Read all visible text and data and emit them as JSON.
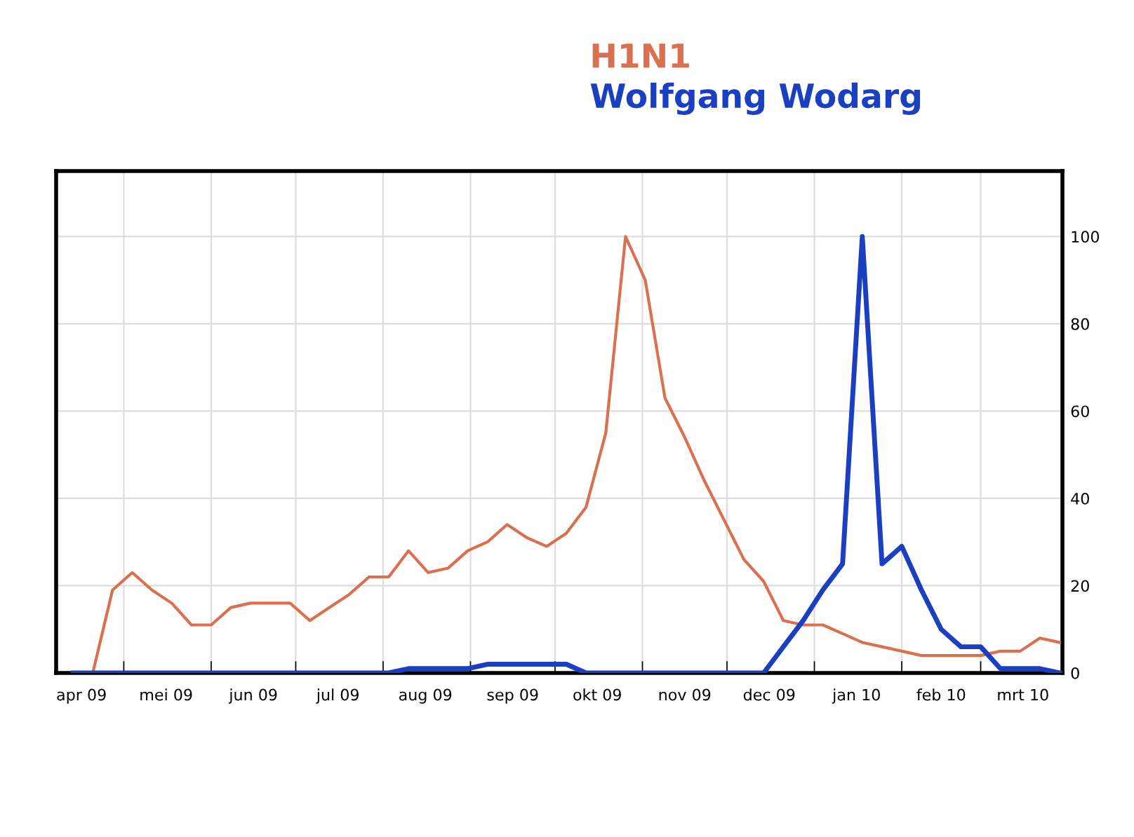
{
  "chart_data": {
    "type": "line",
    "x": [
      "2009-04-13",
      "2009-04-20",
      "2009-04-27",
      "2009-05-04",
      "2009-05-11",
      "2009-05-18",
      "2009-05-25",
      "2009-06-01",
      "2009-06-08",
      "2009-06-15",
      "2009-06-22",
      "2009-06-29",
      "2009-07-06",
      "2009-07-13",
      "2009-07-20",
      "2009-07-27",
      "2009-08-03",
      "2009-08-10",
      "2009-08-17",
      "2009-08-24",
      "2009-08-31",
      "2009-09-07",
      "2009-09-14",
      "2009-09-21",
      "2009-09-28",
      "2009-10-05",
      "2009-10-12",
      "2009-10-19",
      "2009-10-26",
      "2009-11-02",
      "2009-11-09",
      "2009-11-16",
      "2009-11-23",
      "2009-11-30",
      "2009-12-07",
      "2009-12-14",
      "2009-12-21",
      "2009-12-28",
      "2010-01-04",
      "2010-01-11",
      "2010-01-18",
      "2010-01-25",
      "2010-02-01",
      "2010-02-08",
      "2010-02-15",
      "2010-02-22",
      "2010-03-01",
      "2010-03-08",
      "2010-03-15",
      "2010-03-22",
      "2010-03-29"
    ],
    "series": [
      {
        "name": "H1N1",
        "color": "#d9704f",
        "values": [
          0,
          0,
          19,
          23,
          19,
          16,
          11,
          11,
          15,
          16,
          16,
          16,
          12,
          15,
          18,
          22,
          22,
          28,
          23,
          24,
          28,
          30,
          34,
          31,
          29,
          32,
          38,
          55,
          100,
          90,
          63,
          54,
          44,
          35,
          26,
          21,
          12,
          11,
          11,
          9,
          7,
          6,
          5,
          4,
          4,
          4,
          4,
          5,
          5,
          8,
          7
        ]
      },
      {
        "name": "Wolfgang Wodarg",
        "color": "#1a3fc0",
        "values": [
          0,
          0,
          0,
          0,
          0,
          0,
          0,
          0,
          0,
          0,
          0,
          0,
          0,
          0,
          0,
          0,
          0,
          1,
          1,
          1,
          1,
          2,
          2,
          2,
          2,
          2,
          0,
          0,
          0,
          0,
          0,
          0,
          0,
          0,
          0,
          0,
          6,
          12,
          19,
          25,
          100,
          25,
          29,
          19,
          10,
          6,
          6,
          1,
          1,
          1,
          0
        ]
      }
    ],
    "xlim": [
      "2009-04-07",
      "2010-03-30"
    ],
    "xticks": [
      {
        "value": "2009-04-16",
        "label": "apr 09"
      },
      {
        "value": "2009-05-01",
        "label": null
      },
      {
        "value": "2009-05-16",
        "label": "mei 09"
      },
      {
        "value": "2009-06-01",
        "label": null
      },
      {
        "value": "2009-06-16",
        "label": "jun 09"
      },
      {
        "value": "2009-07-01",
        "label": null
      },
      {
        "value": "2009-07-16",
        "label": "jul 09"
      },
      {
        "value": "2009-08-01",
        "label": null
      },
      {
        "value": "2009-08-16",
        "label": "aug 09"
      },
      {
        "value": "2009-09-01",
        "label": null
      },
      {
        "value": "2009-09-16",
        "label": "sep 09"
      },
      {
        "value": "2009-10-01",
        "label": null
      },
      {
        "value": "2009-10-16",
        "label": "okt 09"
      },
      {
        "value": "2009-11-01",
        "label": null
      },
      {
        "value": "2009-11-16",
        "label": "nov 09"
      },
      {
        "value": "2009-12-01",
        "label": null
      },
      {
        "value": "2009-12-16",
        "label": "dec 09"
      },
      {
        "value": "2010-01-01",
        "label": null
      },
      {
        "value": "2010-01-16",
        "label": "jan 10"
      },
      {
        "value": "2010-02-01",
        "label": null
      },
      {
        "value": "2010-02-15",
        "label": "feb 10"
      },
      {
        "value": "2010-03-01",
        "label": null
      },
      {
        "value": "2010-03-16",
        "label": "mrt 10"
      }
    ],
    "ylim": [
      0,
      115
    ],
    "yticks": [
      0,
      20,
      40,
      60,
      80,
      100
    ],
    "grid": true,
    "legend": "top",
    "marker": "none",
    "line_style": "solid"
  }
}
